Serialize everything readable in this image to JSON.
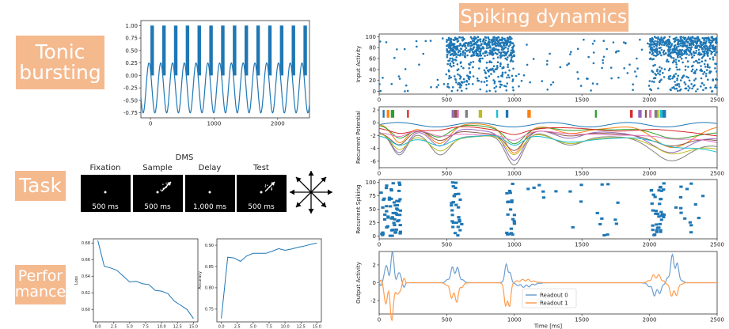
{
  "labels": {
    "tonic": "Tonic bursting",
    "task": "Task",
    "performance": "Perfor mance",
    "spiking": "Spiking dynamics"
  },
  "colors": {
    "tag_bg": "#f5b98e",
    "blue": "#1f77b4",
    "orange": "#ff7f0e"
  },
  "task": {
    "title": "DMS",
    "phases": [
      {
        "name": "Fixation",
        "duration": "500 ms",
        "arrow": false
      },
      {
        "name": "Sample",
        "duration": "500 ms",
        "arrow": true
      },
      {
        "name": "Delay",
        "duration": "1,000 ms",
        "arrow": false
      },
      {
        "name": "Test",
        "duration": "500 ms",
        "arrow": true
      }
    ],
    "directions": 8
  },
  "chart_data": [
    {
      "id": "tonic",
      "type": "line",
      "xlim": [
        -150,
        2500
      ],
      "ylim": [
        -0.85,
        1.1
      ],
      "xticks": [
        0,
        1000,
        2000
      ],
      "yticks": [
        "1.00",
        "0.75",
        "0.50",
        "0.25",
        "0.00",
        "-0.25",
        "-0.50",
        "-0.75"
      ],
      "ytick_values": [
        1,
        0.75,
        0.5,
        0.25,
        0,
        -0.25,
        -0.5,
        -0.75
      ],
      "period": 185,
      "bursts": 14,
      "burst_range": [
        0,
        1
      ],
      "trough": -0.75
    },
    {
      "id": "loss",
      "type": "line",
      "xlabel": "Epoch",
      "ylabel": "Loss",
      "xlim": [
        -0.7,
        15.7
      ],
      "ylim": [
        0.585,
        0.685
      ],
      "xticks": [
        "0.0",
        "2.5",
        "5.0",
        "7.5",
        "10.0",
        "12.5",
        "15.0"
      ],
      "xtick_values": [
        0,
        2.5,
        5,
        7.5,
        10,
        12.5,
        15
      ],
      "yticks": [
        "0.68",
        "0.66",
        "0.64",
        "0.62",
        "0.60"
      ],
      "ytick_values": [
        0.68,
        0.66,
        0.64,
        0.62,
        0.6
      ],
      "x": [
        0,
        1,
        2,
        3,
        4,
        5,
        6,
        7,
        8,
        9,
        10,
        11,
        12,
        13,
        14,
        15
      ],
      "y": [
        0.683,
        0.652,
        0.65,
        0.647,
        0.64,
        0.633,
        0.634,
        0.631,
        0.63,
        0.623,
        0.622,
        0.619,
        0.61,
        0.605,
        0.6,
        0.589
      ]
    },
    {
      "id": "accuracy",
      "type": "line",
      "xlabel": "Epoch",
      "ylabel": "Accuracy",
      "xlim": [
        -0.7,
        15.7
      ],
      "ylim": [
        0.72,
        0.915
      ],
      "xticks": [
        "0.0",
        "2.5",
        "5.0",
        "7.5",
        "10.0",
        "12.5",
        "15.0"
      ],
      "xtick_values": [
        0,
        2.5,
        5,
        7.5,
        10,
        12.5,
        15
      ],
      "yticks": [
        "0.90",
        "0.85",
        "0.80",
        "0.75"
      ],
      "ytick_values": [
        0.9,
        0.85,
        0.8,
        0.75
      ],
      "x": [
        0,
        1,
        2,
        3,
        4,
        5,
        6,
        7,
        8,
        9,
        10,
        11,
        12,
        13,
        14,
        15
      ],
      "y": [
        0.728,
        0.872,
        0.87,
        0.862,
        0.875,
        0.881,
        0.881,
        0.881,
        0.886,
        0.892,
        0.888,
        0.891,
        0.895,
        0.898,
        0.902,
        0.905
      ]
    },
    {
      "id": "input",
      "type": "scatter",
      "ylabel": "Input Activity",
      "xlim": [
        0,
        2500
      ],
      "ylim": [
        -5,
        105
      ],
      "xticks": [
        "0",
        "500",
        "1000",
        "1500",
        "2000",
        "2500"
      ],
      "xtick_values": [
        0,
        500,
        1000,
        1500,
        2000,
        2500
      ],
      "yticks": [
        "0",
        "20",
        "40",
        "60",
        "80",
        "100"
      ],
      "ytick_values": [
        0,
        20,
        40,
        60,
        80,
        100
      ],
      "dense_periods": [
        [
          500,
          1000
        ],
        [
          2000,
          2500
        ]
      ]
    },
    {
      "id": "potential",
      "type": "line",
      "ylabel": "Recurrent Potential",
      "xlim": [
        0,
        2500
      ],
      "ylim": [
        -7,
        2.5
      ],
      "xticks": [
        "0",
        "500",
        "1000",
        "1500",
        "2000",
        "2500"
      ],
      "xtick_values": [
        0,
        500,
        1000,
        1500,
        2000,
        2500
      ],
      "yticks": [
        "2",
        "0",
        "-2",
        "-4",
        "-6"
      ],
      "ytick_values": [
        2,
        0,
        -2,
        -4,
        -6
      ],
      "series_colors": [
        "#1f77b4",
        "#ff7f0e",
        "#2ca02c",
        "#d62728",
        "#9467bd",
        "#8c564b",
        "#e377c2",
        "#7f7f7f",
        "#bcbd22",
        "#17becf"
      ]
    },
    {
      "id": "spiking",
      "type": "scatter",
      "ylabel": "Recurrent Spiking",
      "xlim": [
        0,
        2500
      ],
      "ylim": [
        -5,
        105
      ],
      "xticks": [
        "0",
        "500",
        "1000",
        "1500",
        "2000",
        "2500"
      ],
      "xtick_values": [
        0,
        500,
        1000,
        1500,
        2000,
        2500
      ],
      "yticks": [
        "0",
        "25",
        "50",
        "75",
        "100"
      ],
      "ytick_values": [
        0,
        25,
        50,
        75,
        100
      ]
    },
    {
      "id": "output",
      "type": "line",
      "xlabel": "Time [ms]",
      "ylabel": "Output Activity",
      "xlim": [
        0,
        2500
      ],
      "ylim": [
        -3.5,
        3.5
      ],
      "xticks": [
        "0",
        "500",
        "1000",
        "1500",
        "2000",
        "2500"
      ],
      "xtick_values": [
        0,
        500,
        1000,
        1500,
        2000,
        2500
      ],
      "yticks": [
        "2",
        "0",
        "-2"
      ],
      "ytick_values": [
        2,
        0,
        -2
      ],
      "series": [
        {
          "name": "Readout 0",
          "color": "#6f9fd0"
        },
        {
          "name": "Readout 1",
          "color": "#ff9d4f"
        }
      ]
    }
  ]
}
